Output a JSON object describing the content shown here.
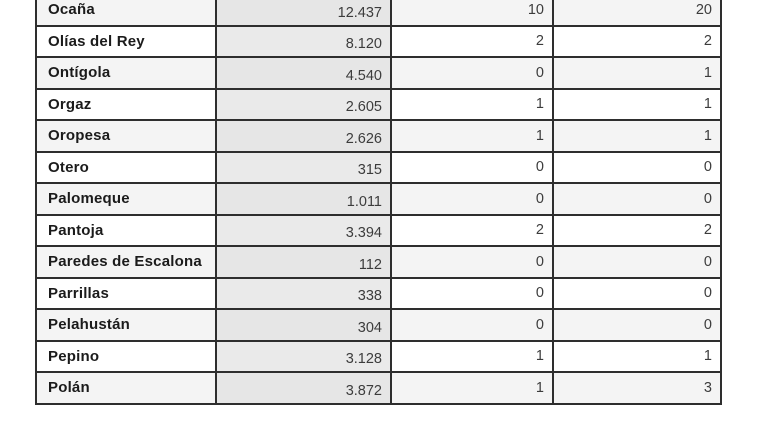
{
  "colors": {
    "border": "#2e2e2e",
    "row_tint": "#f4f4f4",
    "row_plain": "#ffffff",
    "population_column_bg": "#eaeaea",
    "population_column_bg_tinted": "#e6e6e6",
    "name_text": "#1b1b1b",
    "number_text": "#3c3c3c"
  },
  "table": {
    "rows": [
      {
        "municipality": "Ocaña",
        "population": "12.437",
        "value1": "10",
        "value2": "20"
      },
      {
        "municipality": "Olías del Rey",
        "population": "8.120",
        "value1": "2",
        "value2": "2"
      },
      {
        "municipality": "Ontígola",
        "population": "4.540",
        "value1": "0",
        "value2": "1"
      },
      {
        "municipality": "Orgaz",
        "population": "2.605",
        "value1": "1",
        "value2": "1"
      },
      {
        "municipality": "Oropesa",
        "population": "2.626",
        "value1": "1",
        "value2": "1"
      },
      {
        "municipality": "Otero",
        "population": "315",
        "value1": "0",
        "value2": "0"
      },
      {
        "municipality": "Palomeque",
        "population": "1.011",
        "value1": "0",
        "value2": "0"
      },
      {
        "municipality": "Pantoja",
        "population": "3.394",
        "value1": "2",
        "value2": "2"
      },
      {
        "municipality": "Paredes de Escalona",
        "population": "112",
        "value1": "0",
        "value2": "0"
      },
      {
        "municipality": "Parrillas",
        "population": "338",
        "value1": "0",
        "value2": "0"
      },
      {
        "municipality": "Pelahustán",
        "population": "304",
        "value1": "0",
        "value2": "0"
      },
      {
        "municipality": "Pepino",
        "population": "3.128",
        "value1": "1",
        "value2": "1"
      },
      {
        "municipality": "Polán",
        "population": "3.872",
        "value1": "1",
        "value2": "3"
      }
    ]
  }
}
